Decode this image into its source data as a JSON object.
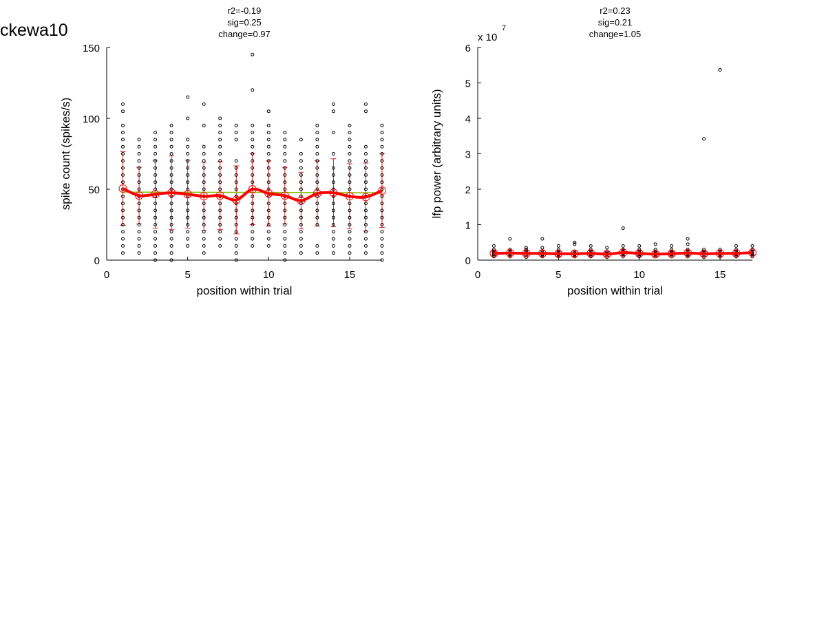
{
  "page_label": "ckewa10",
  "colors": {
    "points": "#000000",
    "mean": "#ff0000",
    "fit": "#7fbf00",
    "errorbar": "#dd2222"
  },
  "chart_data": [
    {
      "type": "scatter",
      "stats": [
        "r2=-0.19",
        "sig=0.25",
        "change=0.97"
      ],
      "xlabel": "position within trial",
      "ylabel": "spike count (spikes/s)",
      "xlim": [
        0,
        17
      ],
      "ylim": [
        0,
        150
      ],
      "xticks": [
        0,
        5,
        10,
        15
      ],
      "yticks": [
        0,
        50,
        100,
        150
      ],
      "exponent_label": "",
      "x": [
        1,
        2,
        3,
        4,
        5,
        6,
        7,
        8,
        9,
        10,
        11,
        12,
        13,
        14,
        15,
        16,
        17
      ],
      "mean": [
        50.5,
        45.5,
        46.5,
        47.5,
        46.5,
        45.0,
        45.5,
        42.5,
        50.0,
        47.0,
        45.5,
        42.0,
        47.0,
        47.5,
        45.0,
        44.5,
        49.0
      ],
      "sd": [
        26,
        20,
        24,
        26,
        24,
        24,
        24,
        24,
        25,
        23,
        20,
        20,
        23,
        24,
        23,
        24,
        26
      ],
      "fit": [
        48.0,
        47.5
      ],
      "points": [
        [
          5,
          10,
          15,
          20,
          25,
          30,
          35,
          40,
          45,
          50,
          55,
          60,
          65,
          70,
          75,
          80,
          85,
          90,
          95,
          105,
          110
        ],
        [
          5,
          10,
          15,
          20,
          25,
          30,
          35,
          40,
          45,
          50,
          55,
          60,
          65,
          70,
          75,
          80,
          85
        ],
        [
          0,
          5,
          10,
          15,
          20,
          25,
          30,
          35,
          40,
          45,
          50,
          55,
          60,
          65,
          70,
          75,
          80,
          85,
          90
        ],
        [
          0,
          5,
          10,
          15,
          20,
          25,
          30,
          35,
          40,
          45,
          50,
          55,
          60,
          65,
          70,
          75,
          80,
          85,
          90,
          95
        ],
        [
          10,
          15,
          20,
          25,
          30,
          35,
          40,
          45,
          50,
          55,
          60,
          65,
          70,
          75,
          80,
          85,
          100,
          115
        ],
        [
          5,
          10,
          15,
          20,
          25,
          30,
          35,
          40,
          45,
          50,
          55,
          60,
          65,
          70,
          75,
          80,
          95,
          110
        ],
        [
          10,
          15,
          20,
          25,
          30,
          35,
          40,
          45,
          50,
          55,
          60,
          65,
          70,
          75,
          80,
          85,
          90,
          95,
          100
        ],
        [
          0,
          5,
          10,
          15,
          20,
          25,
          30,
          35,
          40,
          45,
          50,
          55,
          60,
          65,
          70,
          85,
          90,
          95
        ],
        [
          10,
          15,
          20,
          25,
          30,
          35,
          40,
          45,
          50,
          55,
          60,
          65,
          70,
          75,
          80,
          85,
          90,
          95,
          120,
          145
        ],
        [
          10,
          15,
          20,
          25,
          30,
          35,
          40,
          45,
          50,
          55,
          60,
          65,
          70,
          75,
          80,
          85,
          90,
          95,
          105
        ],
        [
          0,
          5,
          10,
          15,
          20,
          25,
          30,
          35,
          40,
          45,
          50,
          55,
          60,
          65,
          70,
          75,
          80,
          85,
          90
        ],
        [
          5,
          10,
          15,
          20,
          25,
          30,
          35,
          40,
          45,
          50,
          55,
          60,
          65,
          70,
          75,
          85
        ],
        [
          5,
          10,
          25,
          30,
          35,
          40,
          45,
          50,
          55,
          60,
          65,
          70,
          75,
          80,
          85,
          90,
          95
        ],
        [
          5,
          10,
          15,
          20,
          25,
          30,
          35,
          40,
          45,
          50,
          55,
          60,
          65,
          75,
          90,
          105,
          110
        ],
        [
          5,
          10,
          15,
          20,
          25,
          30,
          35,
          40,
          45,
          50,
          55,
          60,
          65,
          70,
          75,
          80,
          85,
          90,
          95
        ],
        [
          5,
          10,
          15,
          20,
          25,
          30,
          35,
          40,
          45,
          50,
          55,
          60,
          65,
          70,
          75,
          80,
          105,
          110
        ],
        [
          0,
          5,
          10,
          15,
          20,
          25,
          30,
          35,
          40,
          45,
          50,
          55,
          60,
          65,
          70,
          75,
          80,
          85,
          90,
          95
        ]
      ]
    },
    {
      "type": "scatter",
      "stats": [
        "r2=0.23",
        "sig=0.21",
        "change=1.05"
      ],
      "xlabel": "position within trial",
      "ylabel": "lfp power (arbitrary units)",
      "xlim": [
        0,
        17
      ],
      "ylim": [
        0,
        6
      ],
      "xticks": [
        0,
        5,
        10,
        15
      ],
      "yticks": [
        0,
        1,
        2,
        3,
        4,
        5,
        6
      ],
      "exponent_label": "x 10",
      "exponent_power": "7",
      "x": [
        1,
        2,
        3,
        4,
        5,
        6,
        7,
        8,
        9,
        10,
        11,
        12,
        13,
        14,
        15,
        16,
        17
      ],
      "mean": [
        0.19,
        0.2,
        0.19,
        0.19,
        0.18,
        0.18,
        0.19,
        0.17,
        0.21,
        0.19,
        0.17,
        0.18,
        0.2,
        0.18,
        0.19,
        0.19,
        0.21
      ],
      "sd": [
        0.06,
        0.08,
        0.07,
        0.08,
        0.07,
        0.08,
        0.07,
        0.06,
        0.09,
        0.07,
        0.07,
        0.06,
        0.08,
        0.07,
        0.08,
        0.07,
        0.07
      ],
      "fit": [
        0.18,
        0.2
      ],
      "points": [
        [
          0.1,
          0.15,
          0.2,
          0.25,
          0.3,
          0.4
        ],
        [
          0.1,
          0.15,
          0.2,
          0.25,
          0.3,
          0.6
        ],
        [
          0.08,
          0.15,
          0.2,
          0.25,
          0.3,
          0.35
        ],
        [
          0.1,
          0.15,
          0.2,
          0.25,
          0.35,
          0.6
        ],
        [
          0.1,
          0.15,
          0.2,
          0.25,
          0.3,
          0.4
        ],
        [
          0.1,
          0.15,
          0.2,
          0.25,
          0.45,
          0.5
        ],
        [
          0.1,
          0.15,
          0.2,
          0.25,
          0.3,
          0.4
        ],
        [
          0.08,
          0.15,
          0.2,
          0.25,
          0.35
        ],
        [
          0.1,
          0.15,
          0.2,
          0.25,
          0.3,
          0.4,
          0.9
        ],
        [
          0.1,
          0.15,
          0.2,
          0.25,
          0.3,
          0.4
        ],
        [
          0.1,
          0.15,
          0.2,
          0.25,
          0.3,
          0.45
        ],
        [
          0.1,
          0.15,
          0.2,
          0.25,
          0.3,
          0.4
        ],
        [
          0.1,
          0.15,
          0.2,
          0.25,
          0.3,
          0.45,
          0.6
        ],
        [
          0.08,
          0.15,
          0.2,
          0.25,
          0.3,
          3.42
        ],
        [
          0.1,
          0.15,
          0.2,
          0.25,
          0.3,
          5.37
        ],
        [
          0.1,
          0.15,
          0.2,
          0.25,
          0.3,
          0.4
        ],
        [
          0.1,
          0.15,
          0.2,
          0.25,
          0.3,
          0.4
        ]
      ]
    }
  ]
}
